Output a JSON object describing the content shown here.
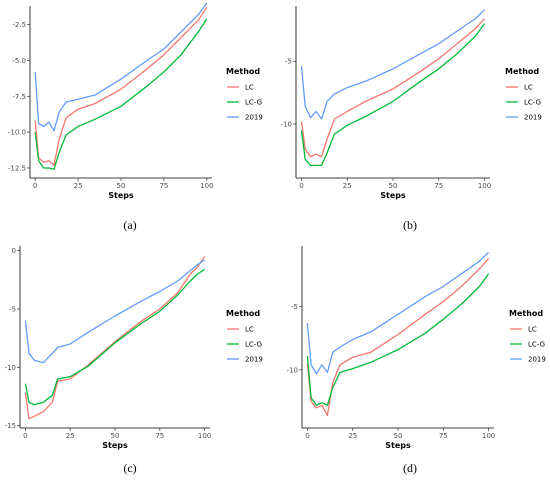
{
  "legend_title": "Method",
  "chart_data": [
    {
      "label": "(a)",
      "type": "line",
      "xlabel": "Steps",
      "ylabel": "",
      "xlim": [
        -3,
        103
      ],
      "ylim": [
        -13.2,
        -1.2
      ],
      "xticks": [
        0,
        25,
        50,
        75,
        100
      ],
      "yticks": [
        -12.5,
        -10.0,
        -7.5,
        -5.0,
        -2.5
      ],
      "ytick_labels": [
        "-12.5",
        "-10.0",
        "-7.5",
        "-5.0",
        "-2.5"
      ],
      "legend": "right",
      "series": [
        {
          "name": "LC",
          "color": "#F8766D",
          "x": [
            0,
            2,
            5,
            8,
            11,
            14,
            18,
            25,
            35,
            50,
            65,
            75,
            85,
            95,
            100
          ],
          "y": [
            -9.2,
            -11.8,
            -12.1,
            -12.0,
            -12.3,
            -10.5,
            -9.0,
            -8.4,
            -8.0,
            -7.0,
            -5.6,
            -4.6,
            -3.4,
            -2.2,
            -1.3
          ]
        },
        {
          "name": "LC-G",
          "color": "#00BA38",
          "x": [
            0,
            2,
            5,
            8,
            11,
            14,
            18,
            25,
            35,
            50,
            65,
            75,
            85,
            95,
            100
          ],
          "y": [
            -10.0,
            -12.0,
            -12.5,
            -12.5,
            -12.6,
            -11.4,
            -10.2,
            -9.6,
            -9.1,
            -8.2,
            -6.8,
            -5.8,
            -4.6,
            -3.0,
            -2.1
          ]
        },
        {
          "name": "2019",
          "color": "#619CFF",
          "x": [
            0,
            2,
            5,
            8,
            11,
            14,
            18,
            25,
            35,
            50,
            65,
            75,
            85,
            95,
            100
          ],
          "y": [
            -5.8,
            -9.4,
            -9.6,
            -9.3,
            -9.9,
            -8.6,
            -7.9,
            -7.7,
            -7.4,
            -6.3,
            -5.0,
            -4.2,
            -3.0,
            -1.8,
            -1.0
          ]
        }
      ]
    },
    {
      "label": "(b)",
      "type": "line",
      "xlabel": "Steps",
      "ylabel": "",
      "xlim": [
        -3,
        103
      ],
      "ylim": [
        -14.3,
        -0.6
      ],
      "xticks": [
        0,
        25,
        50,
        75,
        100
      ],
      "yticks": [
        -10,
        -5
      ],
      "ytick_labels": [
        "-10",
        "-5"
      ],
      "legend": "right",
      "series": [
        {
          "name": "LC",
          "color": "#F8766D",
          "x": [
            0,
            2,
            5,
            8,
            11,
            14,
            18,
            25,
            35,
            50,
            65,
            75,
            85,
            95,
            100
          ],
          "y": [
            -9.8,
            -12.0,
            -12.6,
            -12.4,
            -12.6,
            -11.2,
            -9.6,
            -9.0,
            -8.2,
            -7.2,
            -5.8,
            -4.8,
            -3.6,
            -2.4,
            -1.6
          ]
        },
        {
          "name": "LC-G",
          "color": "#00BA38",
          "x": [
            0,
            2,
            5,
            8,
            11,
            14,
            18,
            25,
            35,
            50,
            65,
            75,
            85,
            95,
            100
          ],
          "y": [
            -10.5,
            -12.8,
            -13.3,
            -13.3,
            -13.3,
            -12.3,
            -10.8,
            -10.1,
            -9.4,
            -8.2,
            -6.6,
            -5.6,
            -4.4,
            -3.0,
            -2.0
          ]
        },
        {
          "name": "2019",
          "color": "#619CFF",
          "x": [
            0,
            2,
            5,
            8,
            11,
            14,
            18,
            25,
            35,
            50,
            65,
            75,
            85,
            95,
            100
          ],
          "y": [
            -5.4,
            -8.6,
            -9.5,
            -9.0,
            -9.6,
            -8.2,
            -7.6,
            -7.1,
            -6.6,
            -5.6,
            -4.4,
            -3.6,
            -2.6,
            -1.6,
            -0.9
          ]
        }
      ]
    },
    {
      "label": "(c)",
      "type": "line",
      "xlabel": "Steps",
      "ylabel": "",
      "xlim": [
        -3,
        103
      ],
      "ylim": [
        -15.2,
        0.4
      ],
      "xticks": [
        0,
        25,
        50,
        75,
        100
      ],
      "yticks": [
        -15,
        -10,
        -5,
        0
      ],
      "ytick_labels": [
        "-15",
        "-10",
        "-5",
        "0"
      ],
      "legend": "right",
      "series": [
        {
          "name": "LC",
          "color": "#F8766D",
          "x": [
            0,
            2,
            5,
            10,
            15,
            18,
            25,
            35,
            50,
            65,
            75,
            85,
            92,
            96,
            100
          ],
          "y": [
            -12.2,
            -14.4,
            -14.2,
            -13.8,
            -13.0,
            -11.2,
            -11.0,
            -9.8,
            -7.8,
            -6.0,
            -5.0,
            -3.6,
            -2.0,
            -1.4,
            -0.5
          ]
        },
        {
          "name": "LC-G",
          "color": "#00BA38",
          "x": [
            0,
            2,
            5,
            10,
            15,
            18,
            25,
            35,
            50,
            65,
            75,
            85,
            92,
            96,
            100
          ],
          "y": [
            -11.4,
            -13.0,
            -13.2,
            -13.0,
            -12.4,
            -11.0,
            -10.8,
            -9.9,
            -7.9,
            -6.2,
            -5.2,
            -3.8,
            -2.6,
            -2.0,
            -1.6
          ]
        },
        {
          "name": "2019",
          "color": "#619CFF",
          "x": [
            0,
            2,
            5,
            10,
            15,
            18,
            25,
            35,
            50,
            65,
            75,
            85,
            92,
            96,
            100
          ],
          "y": [
            -6.0,
            -8.8,
            -9.4,
            -9.6,
            -8.8,
            -8.3,
            -8.0,
            -7.0,
            -5.6,
            -4.3,
            -3.5,
            -2.6,
            -1.7,
            -1.2,
            -0.8
          ]
        }
      ]
    },
    {
      "label": "(d)",
      "type": "line",
      "xlabel": "Steps",
      "ylabel": "",
      "xlim": [
        -3,
        103
      ],
      "ylim": [
        -14.6,
        -0.2
      ],
      "xticks": [
        0,
        25,
        50,
        75,
        100
      ],
      "yticks": [
        -10,
        -5
      ],
      "ytick_labels": [
        "-10",
        "-5"
      ],
      "legend": "right",
      "series": [
        {
          "name": "LC",
          "color": "#F8766D",
          "x": [
            0,
            2,
            5,
            8,
            11,
            14,
            18,
            25,
            35,
            50,
            65,
            75,
            85,
            95,
            100
          ],
          "y": [
            -9.5,
            -12.5,
            -13.0,
            -12.8,
            -13.6,
            -11.0,
            -9.6,
            -9.0,
            -8.6,
            -7.2,
            -5.6,
            -4.6,
            -3.4,
            -2.0,
            -1.2
          ]
        },
        {
          "name": "LC-G",
          "color": "#00BA38",
          "x": [
            0,
            2,
            5,
            8,
            11,
            14,
            18,
            25,
            35,
            50,
            65,
            75,
            85,
            95,
            100
          ],
          "y": [
            -8.9,
            -12.2,
            -12.8,
            -12.6,
            -12.8,
            -11.4,
            -10.2,
            -9.9,
            -9.4,
            -8.4,
            -7.1,
            -6.0,
            -4.8,
            -3.4,
            -2.4
          ]
        },
        {
          "name": "2019",
          "color": "#619CFF",
          "x": [
            0,
            2,
            5,
            8,
            11,
            14,
            18,
            25,
            35,
            50,
            65,
            75,
            85,
            95,
            100
          ],
          "y": [
            -6.3,
            -9.6,
            -10.3,
            -9.6,
            -10.2,
            -8.6,
            -8.2,
            -7.6,
            -7.0,
            -5.6,
            -4.2,
            -3.4,
            -2.4,
            -1.4,
            -0.7
          ]
        }
      ]
    }
  ]
}
